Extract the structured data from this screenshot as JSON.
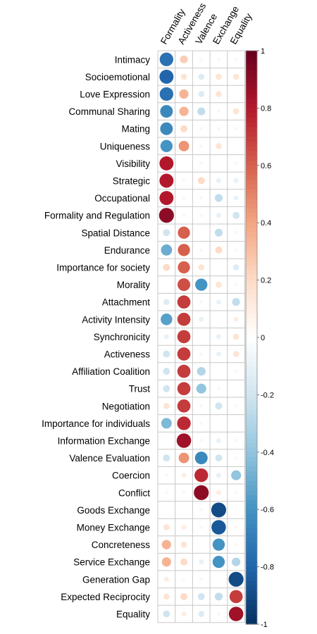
{
  "chart_data": {
    "type": "heatmap",
    "style": "corrplot-circles",
    "columns": [
      "Formality",
      "Activeness",
      "Valence",
      "Exchange",
      "Equality"
    ],
    "rows": [
      {
        "label": "Intimacy",
        "values": [
          -0.75,
          0.25,
          0.05,
          0.05,
          0.05
        ]
      },
      {
        "label": "Socioemotional",
        "values": [
          -0.8,
          0.15,
          -0.15,
          0.15,
          0.15
        ]
      },
      {
        "label": "Love Expression",
        "values": [
          -0.75,
          0.35,
          -0.15,
          0.15,
          0.0
        ]
      },
      {
        "label": "Communal Sharing",
        "values": [
          -0.65,
          0.35,
          -0.25,
          0.05,
          0.15
        ]
      },
      {
        "label": "Mating",
        "values": [
          -0.65,
          0.2,
          0.05,
          0.05,
          0.05
        ]
      },
      {
        "label": "Uniqueness",
        "values": [
          -0.6,
          0.45,
          0.05,
          0.15,
          0.0
        ]
      },
      {
        "label": "Visibility",
        "values": [
          0.8,
          0.0,
          0.05,
          0.0,
          0.05
        ]
      },
      {
        "label": "Strategic",
        "values": [
          0.8,
          0.05,
          0.2,
          -0.1,
          -0.1
        ]
      },
      {
        "label": "Occupational",
        "values": [
          0.8,
          0.05,
          0.05,
          -0.25,
          -0.1
        ]
      },
      {
        "label": "Formality and Regulation",
        "values": [
          0.9,
          0.05,
          0.05,
          -0.1,
          -0.2
        ]
      },
      {
        "label": "Spatial Distance",
        "values": [
          -0.2,
          0.6,
          0.0,
          -0.25,
          0.05
        ]
      },
      {
        "label": "Endurance",
        "values": [
          -0.5,
          0.6,
          0.05,
          0.2,
          0.05
        ]
      },
      {
        "label": "Importance for society",
        "values": [
          0.2,
          0.6,
          0.15,
          0.0,
          -0.15
        ]
      },
      {
        "label": "Morality",
        "values": [
          0.0,
          0.65,
          -0.6,
          0.15,
          0.05
        ]
      },
      {
        "label": "Attachment",
        "values": [
          -0.15,
          0.7,
          0.05,
          -0.1,
          -0.25
        ]
      },
      {
        "label": "Activity Intensity",
        "values": [
          -0.55,
          0.7,
          -0.1,
          0.0,
          0.1
        ]
      },
      {
        "label": "Synchronicity",
        "values": [
          -0.1,
          0.7,
          0.0,
          -0.1,
          0.15
        ]
      },
      {
        "label": "Activeness",
        "values": [
          -0.2,
          0.7,
          0.05,
          -0.1,
          0.15
        ]
      },
      {
        "label": "Affiliation Coalition",
        "values": [
          -0.2,
          0.7,
          -0.3,
          0.0,
          0.05
        ]
      },
      {
        "label": "Trust",
        "values": [
          -0.2,
          0.7,
          -0.4,
          0.05,
          0.0
        ]
      },
      {
        "label": "Negotiation",
        "values": [
          0.15,
          0.7,
          0.05,
          -0.2,
          0.05
        ]
      },
      {
        "label": "Importance for individuals",
        "values": [
          -0.45,
          0.75,
          0.05,
          0.0,
          0.0
        ]
      },
      {
        "label": "Information Exchange",
        "values": [
          0.0,
          0.85,
          0.05,
          -0.1,
          0.05
        ]
      },
      {
        "label": "Valence Evaluation",
        "values": [
          -0.2,
          0.45,
          -0.65,
          -0.2,
          0.05
        ]
      },
      {
        "label": "Coercion",
        "values": [
          0.05,
          0.1,
          0.75,
          -0.1,
          -0.4
        ]
      },
      {
        "label": "Conflict",
        "values": [
          0.05,
          0.05,
          0.9,
          0.1,
          0.05
        ]
      },
      {
        "label": "Goods Exchange",
        "values": [
          0.0,
          0.0,
          -0.05,
          -0.9,
          0.0
        ]
      },
      {
        "label": "Money Exchange",
        "values": [
          0.15,
          0.1,
          0.05,
          -0.85,
          0.05
        ]
      },
      {
        "label": "Concreteness",
        "values": [
          0.35,
          0.15,
          0.0,
          -0.6,
          0.05
        ]
      },
      {
        "label": "Service Exchange",
        "values": [
          0.35,
          0.2,
          -0.1,
          -0.6,
          -0.3
        ]
      },
      {
        "label": "Generation Gap",
        "values": [
          0.1,
          0.05,
          0.05,
          0.0,
          -0.9
        ]
      },
      {
        "label": "Expected Reciprocity",
        "values": [
          0.15,
          0.2,
          -0.2,
          -0.25,
          0.7
        ]
      },
      {
        "label": "Equality",
        "values": [
          -0.2,
          0.1,
          -0.15,
          0.05,
          0.85
        ]
      }
    ],
    "colorbar": {
      "range": [
        -1,
        1
      ],
      "ticks": [
        "1",
        "0.8",
        "0.6",
        "0.4",
        "0.2",
        "0",
        "-0.2",
        "-0.4",
        "-0.6",
        "-0.8",
        "-1"
      ],
      "tick_values": [
        1,
        0.8,
        0.6,
        0.4,
        0.2,
        0,
        -0.2,
        -0.4,
        -0.6,
        -0.8,
        -1
      ],
      "palette": [
        "#053061",
        "#2166AC",
        "#4393C3",
        "#92C5DE",
        "#D1E5F0",
        "#FFFFFF",
        "#FDDBC7",
        "#F4A582",
        "#D6604D",
        "#B2182B",
        "#67001F"
      ]
    }
  }
}
